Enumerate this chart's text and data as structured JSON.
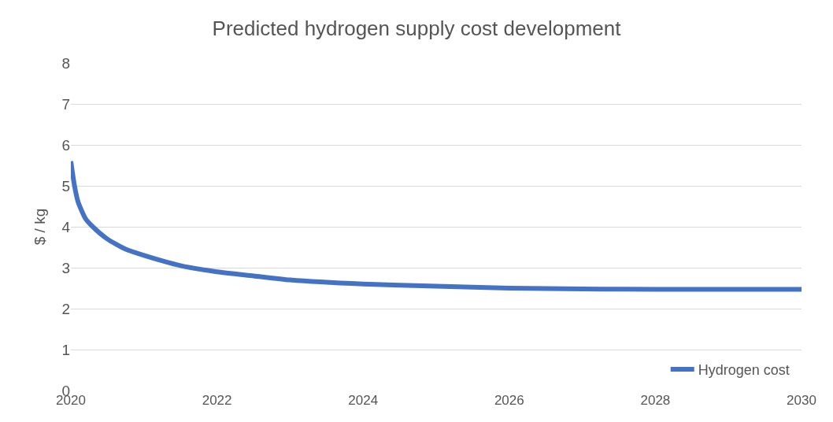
{
  "chart_data": {
    "type": "line",
    "title": "Predicted hydrogen supply cost development",
    "ylabel": "$ / kg",
    "x": [
      2020,
      2020.05,
      2020.1,
      2020.2,
      2020.3,
      2020.5,
      2020.75,
      2021,
      2021.5,
      2022,
      2022.5,
      2023,
      2024,
      2025,
      2026,
      2027,
      2028,
      2029,
      2030
    ],
    "series": [
      {
        "name": "Hydrogen cost",
        "color": "#4472c4",
        "values": [
          5.6,
          5.0,
          4.6,
          4.2,
          4.0,
          3.7,
          3.45,
          3.3,
          3.05,
          2.9,
          2.8,
          2.7,
          2.6,
          2.55,
          2.5,
          2.48,
          2.47,
          2.47,
          2.47
        ]
      }
    ],
    "xlim": [
      2020,
      2030
    ],
    "xticks": [
      2020,
      2022,
      2024,
      2026,
      2028,
      2030
    ],
    "ylim": [
      0,
      8
    ],
    "yticks": [
      0,
      1,
      2,
      3,
      4,
      5,
      6,
      7,
      8
    ],
    "grid": "y",
    "legend": "bottom right",
    "marker": "none",
    "line_style": "solid"
  }
}
